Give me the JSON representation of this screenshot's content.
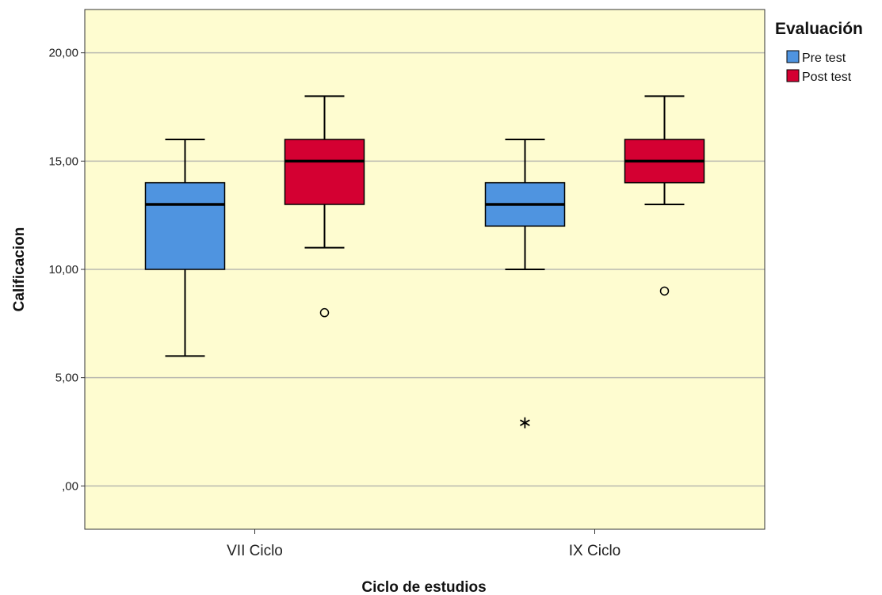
{
  "chart_data": {
    "type": "boxplot",
    "xlabel": "Ciclo de estudios",
    "ylabel": "Calificacion",
    "ylim": [
      -2,
      22
    ],
    "yticks": [
      0,
      5,
      10,
      15,
      20
    ],
    "ytick_labels": [
      ",00",
      "5,00",
      "10,00",
      "15,00",
      "20,00"
    ],
    "grid": true,
    "categories": [
      "VII Ciclo",
      "IX Ciclo"
    ],
    "legend": {
      "title": "Evaluación",
      "position": "right"
    },
    "series": [
      {
        "name": "Pre test",
        "color": "#4f94e0",
        "boxes": [
          {
            "whisker_low": 6,
            "q1": 10,
            "median": 13,
            "q3": 14,
            "whisker_high": 16,
            "outliers": [],
            "extremes": []
          },
          {
            "whisker_low": 10,
            "q1": 12,
            "median": 13,
            "q3": 14,
            "whisker_high": 16,
            "outliers": [],
            "extremes": [
              3
            ]
          }
        ]
      },
      {
        "name": "Post test",
        "color": "#d40032",
        "boxes": [
          {
            "whisker_low": 11,
            "q1": 13,
            "median": 15,
            "q3": 16,
            "whisker_high": 18,
            "outliers": [
              8
            ],
            "extremes": []
          },
          {
            "whisker_low": 13,
            "q1": 14,
            "median": 15,
            "q3": 16,
            "whisker_high": 18,
            "outliers": [
              9
            ],
            "extremes": []
          }
        ]
      }
    ]
  },
  "colors": {
    "plot_background": "#fefcd0",
    "gridline": "#b9b9b0"
  }
}
